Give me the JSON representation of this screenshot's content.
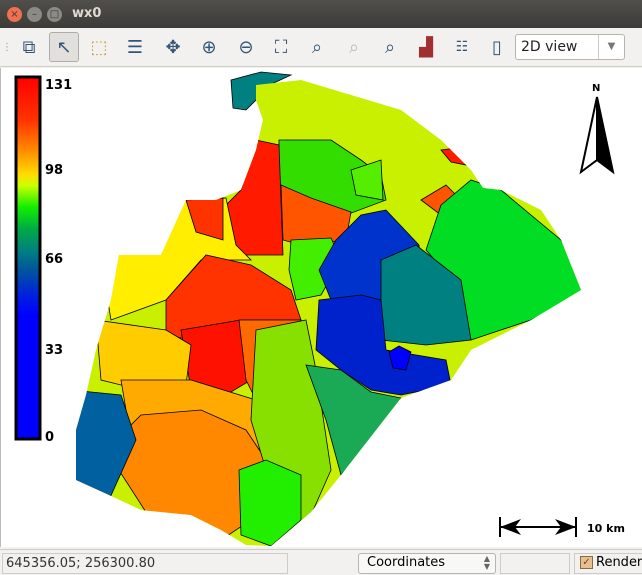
{
  "window": {
    "title": "wx0"
  },
  "toolbar": {
    "tools": [
      "Add/redraw map",
      "Pointer",
      "Select",
      "Query",
      "Pan",
      "Zoom in",
      "Zoom out",
      "Zoom to extent",
      "Zoom to region",
      "Zoom back",
      "Zoom options",
      "Analyze",
      "Decorations",
      "Save display"
    ],
    "view_mode": "2D view"
  },
  "map": {
    "legend": {
      "labels": [
        "131",
        "98",
        "66",
        "33",
        "0"
      ],
      "max": 131,
      "min": 0,
      "colors": [
        "#ff0000",
        "#ff4400",
        "#ff8800",
        "#ffcc00",
        "#ccff00",
        "#22ee00",
        "#00aa44",
        "#008080",
        "#0050a0",
        "#0000ff"
      ]
    },
    "north_label": "N",
    "scale_label": "10 km"
  },
  "status": {
    "coordinates": "645356.05; 256300.80",
    "mode": "Coordinates",
    "render_label": "Render",
    "render_checked": true
  }
}
